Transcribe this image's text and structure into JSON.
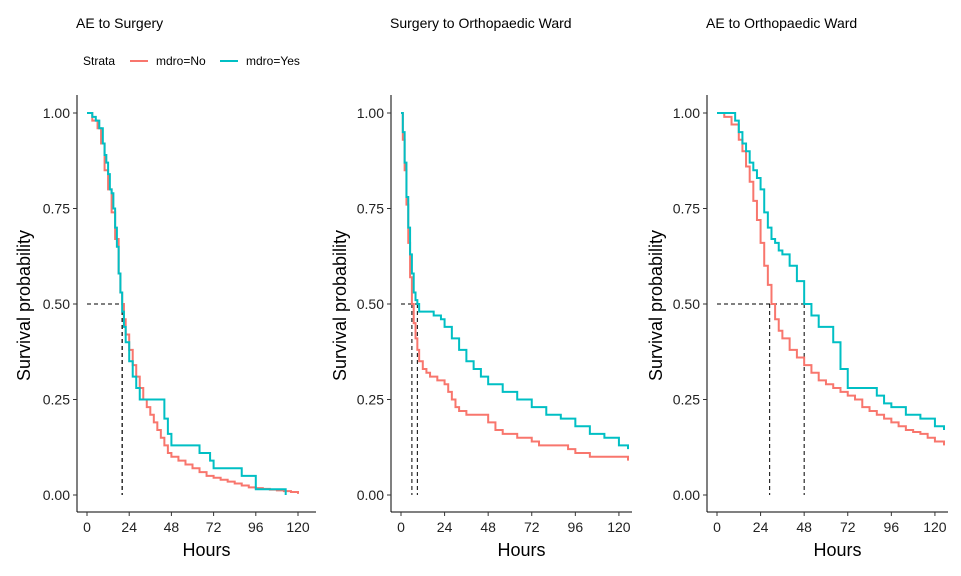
{
  "legend": {
    "title": "Strata",
    "items": [
      {
        "label": "mdro=No",
        "color": "#F8766D"
      },
      {
        "label": "mdro=Yes",
        "color": "#00BFC4"
      }
    ]
  },
  "chart_data": [
    {
      "type": "line",
      "subtype": "kaplan-meier-step",
      "title": "AE to Surgery",
      "xlabel": "Hours",
      "ylabel": "Survival probability",
      "xlim": [
        0,
        120
      ],
      "ylim": [
        0,
        1
      ],
      "xticks": [
        0,
        24,
        48,
        72,
        96,
        120
      ],
      "yticks": [
        0.0,
        0.25,
        0.5,
        0.75,
        1.0
      ],
      "ytick_labels": [
        "0.00",
        "0.25",
        "0.50",
        "0.75",
        "1.00"
      ],
      "grid": false,
      "median_lines": [
        {
          "series": "mdro=No",
          "x": 20
        },
        {
          "series": "mdro=Yes",
          "x": 20
        }
      ],
      "series": [
        {
          "name": "mdro=No",
          "color": "#F8766D",
          "x": [
            0,
            3,
            6,
            8,
            10,
            12,
            14,
            16,
            18,
            19,
            20,
            21,
            22,
            24,
            26,
            28,
            30,
            32,
            34,
            36,
            38,
            40,
            42,
            44,
            46,
            48,
            52,
            56,
            60,
            64,
            68,
            72,
            76,
            80,
            84,
            88,
            92,
            96,
            100,
            104,
            108,
            112,
            116,
            120
          ],
          "y": [
            1.0,
            0.98,
            0.96,
            0.92,
            0.85,
            0.8,
            0.74,
            0.67,
            0.58,
            0.53,
            0.5,
            0.46,
            0.42,
            0.38,
            0.34,
            0.31,
            0.28,
            0.25,
            0.23,
            0.21,
            0.19,
            0.17,
            0.15,
            0.13,
            0.11,
            0.1,
            0.09,
            0.08,
            0.07,
            0.06,
            0.05,
            0.045,
            0.04,
            0.035,
            0.03,
            0.025,
            0.02,
            0.018,
            0.016,
            0.014,
            0.012,
            0.01,
            0.008,
            0.003
          ]
        },
        {
          "name": "mdro=Yes",
          "color": "#00BFC4",
          "x": [
            0,
            3,
            5,
            7,
            9,
            10,
            11,
            12,
            13,
            14,
            15,
            16,
            17,
            18,
            19,
            20,
            21,
            22,
            24,
            26,
            28,
            30,
            36,
            42,
            44,
            46,
            48,
            60,
            64,
            70,
            72,
            80,
            88,
            92,
            96,
            104,
            112,
            113
          ],
          "y": [
            1.0,
            0.99,
            0.98,
            0.96,
            0.92,
            0.89,
            0.87,
            0.84,
            0.8,
            0.79,
            0.75,
            0.7,
            0.65,
            0.58,
            0.53,
            0.48,
            0.44,
            0.4,
            0.35,
            0.31,
            0.28,
            0.25,
            0.25,
            0.25,
            0.2,
            0.16,
            0.13,
            0.13,
            0.11,
            0.09,
            0.07,
            0.07,
            0.05,
            0.05,
            0.015,
            0.015,
            0.015,
            0.0
          ]
        }
      ]
    },
    {
      "type": "line",
      "subtype": "kaplan-meier-step",
      "title": "Surgery to Orthopaedic Ward",
      "xlabel": "Hours",
      "ylabel": "Survival probability",
      "xlim": [
        0,
        125
      ],
      "ylim": [
        0,
        1
      ],
      "xticks": [
        0,
        24,
        48,
        72,
        96,
        120
      ],
      "yticks": [
        0.0,
        0.25,
        0.5,
        0.75,
        1.0
      ],
      "ytick_labels": [
        "0.00",
        "0.25",
        "0.50",
        "0.75",
        "1.00"
      ],
      "grid": false,
      "median_lines": [
        {
          "series": "mdro=No",
          "x": 6
        },
        {
          "series": "mdro=Yes",
          "x": 9
        }
      ],
      "series": [
        {
          "name": "mdro=No",
          "color": "#F8766D",
          "x": [
            0,
            1,
            2,
            3,
            4,
            5,
            6,
            7,
            8,
            9,
            10,
            12,
            14,
            16,
            18,
            20,
            24,
            26,
            28,
            30,
            32,
            34,
            36,
            40,
            48,
            52,
            56,
            60,
            64,
            72,
            76,
            80,
            88,
            92,
            96,
            104,
            112,
            120,
            125
          ],
          "y": [
            1.0,
            0.93,
            0.85,
            0.76,
            0.66,
            0.57,
            0.5,
            0.45,
            0.41,
            0.38,
            0.35,
            0.33,
            0.32,
            0.31,
            0.31,
            0.3,
            0.29,
            0.27,
            0.25,
            0.23,
            0.22,
            0.22,
            0.21,
            0.21,
            0.19,
            0.17,
            0.16,
            0.16,
            0.15,
            0.14,
            0.13,
            0.13,
            0.13,
            0.12,
            0.11,
            0.1,
            0.1,
            0.1,
            0.09
          ]
        },
        {
          "name": "mdro=Yes",
          "color": "#00BFC4",
          "x": [
            0,
            1,
            2,
            3,
            4,
            5,
            6,
            7,
            8,
            9,
            10,
            14,
            18,
            22,
            24,
            28,
            32,
            36,
            40,
            44,
            48,
            56,
            64,
            72,
            80,
            88,
            96,
            104,
            112,
            120,
            125
          ],
          "y": [
            1.0,
            0.95,
            0.87,
            0.78,
            0.7,
            0.63,
            0.58,
            0.53,
            0.51,
            0.5,
            0.48,
            0.48,
            0.47,
            0.46,
            0.44,
            0.41,
            0.38,
            0.35,
            0.33,
            0.31,
            0.29,
            0.27,
            0.25,
            0.23,
            0.21,
            0.2,
            0.18,
            0.16,
            0.15,
            0.13,
            0.12
          ]
        }
      ]
    },
    {
      "type": "line",
      "subtype": "kaplan-meier-step",
      "title": "AE to Orthopaedic Ward",
      "xlabel": "Hours",
      "ylabel": "Survival probability",
      "xlim": [
        0,
        125
      ],
      "ylim": [
        0,
        1
      ],
      "xticks": [
        0,
        24,
        48,
        72,
        96,
        120
      ],
      "yticks": [
        0.0,
        0.25,
        0.5,
        0.75,
        1.0
      ],
      "ytick_labels": [
        "0.00",
        "0.25",
        "0.50",
        "0.75",
        "1.00"
      ],
      "grid": false,
      "median_lines": [
        {
          "series": "mdro=No",
          "x": 29
        },
        {
          "series": "mdro=Yes",
          "x": 48
        }
      ],
      "series": [
        {
          "name": "mdro=No",
          "color": "#F8766D",
          "x": [
            0,
            4,
            8,
            12,
            14,
            16,
            18,
            20,
            22,
            24,
            26,
            28,
            30,
            32,
            34,
            36,
            40,
            44,
            48,
            52,
            56,
            60,
            64,
            68,
            72,
            76,
            80,
            84,
            88,
            92,
            96,
            100,
            104,
            108,
            112,
            116,
            120,
            125
          ],
          "y": [
            1.0,
            0.99,
            0.97,
            0.93,
            0.9,
            0.86,
            0.82,
            0.77,
            0.72,
            0.66,
            0.6,
            0.55,
            0.5,
            0.46,
            0.43,
            0.41,
            0.38,
            0.36,
            0.34,
            0.32,
            0.3,
            0.29,
            0.28,
            0.27,
            0.26,
            0.25,
            0.23,
            0.22,
            0.21,
            0.2,
            0.19,
            0.18,
            0.17,
            0.165,
            0.16,
            0.15,
            0.14,
            0.13
          ]
        },
        {
          "name": "mdro=Yes",
          "color": "#00BFC4",
          "x": [
            0,
            8,
            10,
            12,
            14,
            16,
            18,
            20,
            22,
            24,
            26,
            28,
            30,
            32,
            34,
            36,
            40,
            44,
            48,
            52,
            56,
            60,
            64,
            68,
            72,
            80,
            88,
            92,
            96,
            104,
            112,
            120,
            125
          ],
          "y": [
            1.0,
            1.0,
            0.98,
            0.95,
            0.92,
            0.9,
            0.87,
            0.85,
            0.83,
            0.8,
            0.74,
            0.7,
            0.67,
            0.66,
            0.64,
            0.63,
            0.6,
            0.56,
            0.5,
            0.47,
            0.44,
            0.44,
            0.4,
            0.33,
            0.28,
            0.28,
            0.26,
            0.24,
            0.23,
            0.21,
            0.2,
            0.18,
            0.17
          ]
        }
      ]
    }
  ]
}
